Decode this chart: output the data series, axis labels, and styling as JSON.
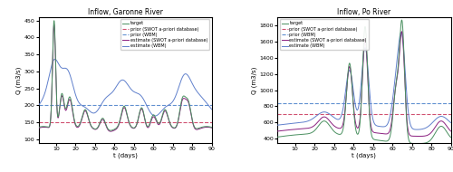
{
  "garonne": {
    "title": "Inflow, Garonne River",
    "xlabel": "t (days)",
    "ylabel": "Q (m3/s)",
    "xlim": [
      1,
      90
    ],
    "ylim": [
      90,
      460
    ],
    "yticks": [
      100,
      150,
      200,
      250,
      300,
      350,
      400,
      450
    ],
    "xticks": [
      10,
      20,
      30,
      40,
      50,
      60,
      70,
      80,
      90
    ],
    "prior_swot": 150,
    "prior_wbm": 200,
    "target_color": "#4a9060",
    "estimate_swot_color": "#8b2080",
    "estimate_wbm_color": "#6080cc",
    "prior_swot_color": "#d05070",
    "prior_wbm_color": "#6090d0"
  },
  "po": {
    "title": "Inflow, Po River",
    "xlabel": "t (days)",
    "ylabel": "Q (m3/s)",
    "xlim": [
      1,
      90
    ],
    "ylim": [
      350,
      1900
    ],
    "yticks": [
      400,
      600,
      800,
      1000,
      1200,
      1400,
      1600,
      1800
    ],
    "xticks": [
      10,
      20,
      30,
      40,
      50,
      60,
      70,
      80,
      90
    ],
    "prior_swot": 700,
    "prior_wbm": 840,
    "target_color": "#4a9060",
    "estimate_swot_color": "#8b2080",
    "estimate_wbm_color": "#6080cc",
    "prior_swot_color": "#d05070",
    "prior_wbm_color": "#6090d0"
  },
  "legend_labels": [
    "target",
    "prior (SWOT a-priori database)",
    "prior (WBM)",
    "estimate (SWOT a-priori database)",
    "estimate (WBM)"
  ]
}
